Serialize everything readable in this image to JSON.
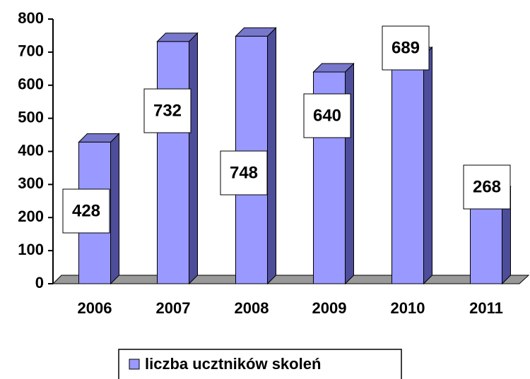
{
  "chart_data": {
    "type": "bar3d",
    "categories": [
      "2006",
      "2007",
      "2008",
      "2009",
      "2010",
      "2011"
    ],
    "series": [
      {
        "name": "liczba ucztników skoleń",
        "color": "#9999ff",
        "values": [
          428,
          732,
          748,
          640,
          689,
          268
        ]
      }
    ],
    "ylim": [
      0,
      800
    ],
    "yticks": [
      0,
      100,
      200,
      300,
      400,
      500,
      600,
      700,
      800
    ],
    "legend": "bottom"
  }
}
